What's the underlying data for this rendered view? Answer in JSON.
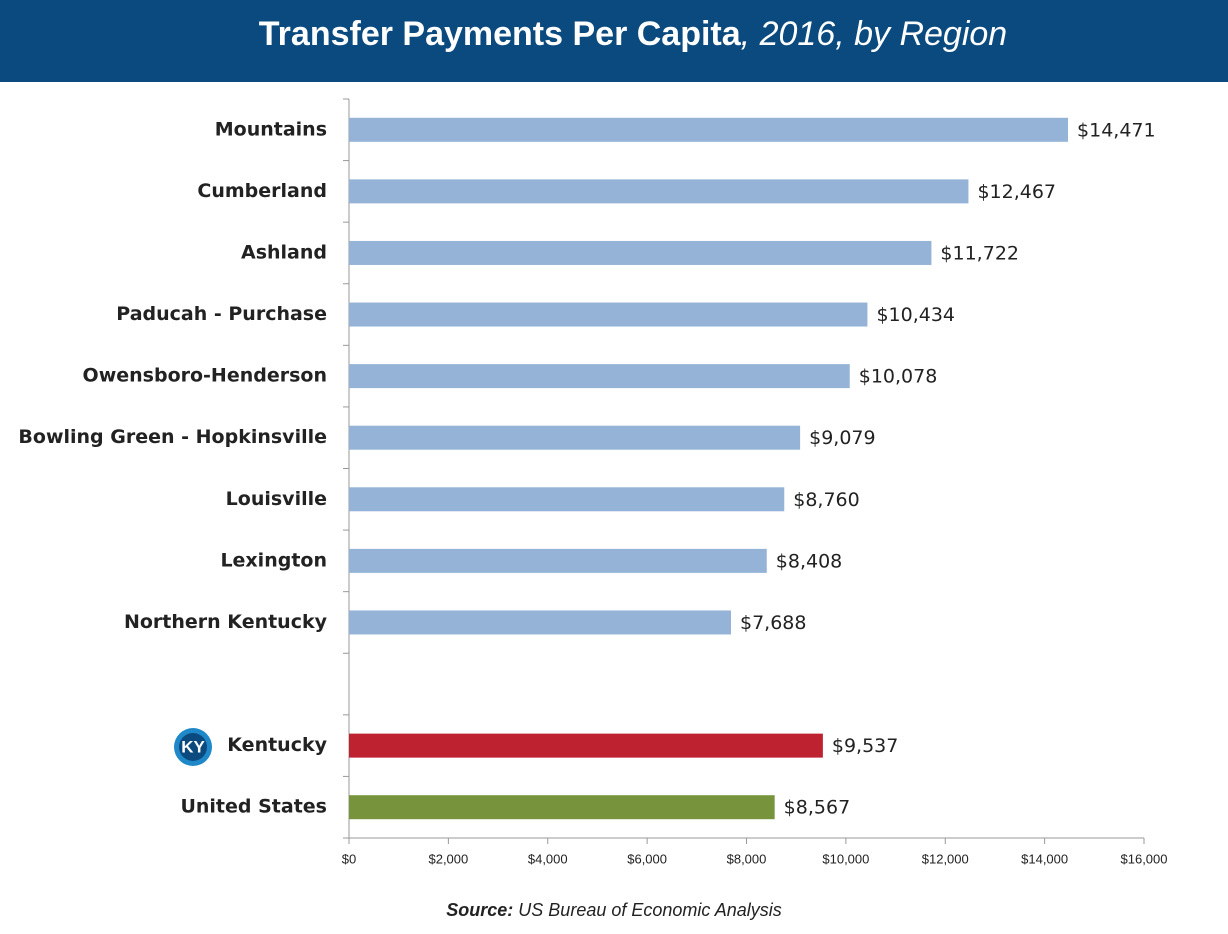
{
  "chart_data": {
    "type": "bar",
    "orientation": "horizontal",
    "title": "Transfer Payments Per Capita",
    "subtitle": ", 2016, by Region",
    "categories": [
      "Mountains",
      "Cumberland",
      "Ashland",
      "Paducah - Purchase",
      "Owensboro-Henderson",
      "Bowling Green - Hopkinsville",
      "Louisville",
      "Lexington",
      "Northern Kentucky",
      null,
      "Kentucky",
      "United States"
    ],
    "values": [
      14471,
      12467,
      11722,
      10434,
      10078,
      9079,
      8760,
      8408,
      7688,
      null,
      9537,
      8567
    ],
    "value_labels": [
      "$14,471",
      "$12,467",
      "$11,722",
      "$10,434",
      "$10,078",
      "$9,079",
      "$8,760",
      "$8,408",
      "$7,688",
      null,
      "$9,537",
      "$8,567"
    ],
    "colors": [
      "#95b3d7",
      "#95b3d7",
      "#95b3d7",
      "#95b3d7",
      "#95b3d7",
      "#95b3d7",
      "#95b3d7",
      "#95b3d7",
      "#95b3d7",
      null,
      "#be2130",
      "#77933c"
    ],
    "xlim": [
      0,
      16000
    ],
    "xticks": [
      {
        "value": 0,
        "label": "$0"
      },
      {
        "value": 2000,
        "label": "$2,000"
      },
      {
        "value": 4000,
        "label": "$4,000"
      },
      {
        "value": 6000,
        "label": "$6,000"
      },
      {
        "value": 8000,
        "label": "$8,000"
      },
      {
        "value": 10000,
        "label": "$10,000"
      },
      {
        "value": 12000,
        "label": "$12,000"
      },
      {
        "value": 14000,
        "label": "$14,000"
      },
      {
        "value": 16000,
        "label": "$16,000"
      }
    ],
    "badge": "KY",
    "source_label": "Source:",
    "source": "US Bureau of Economic Analysis"
  }
}
